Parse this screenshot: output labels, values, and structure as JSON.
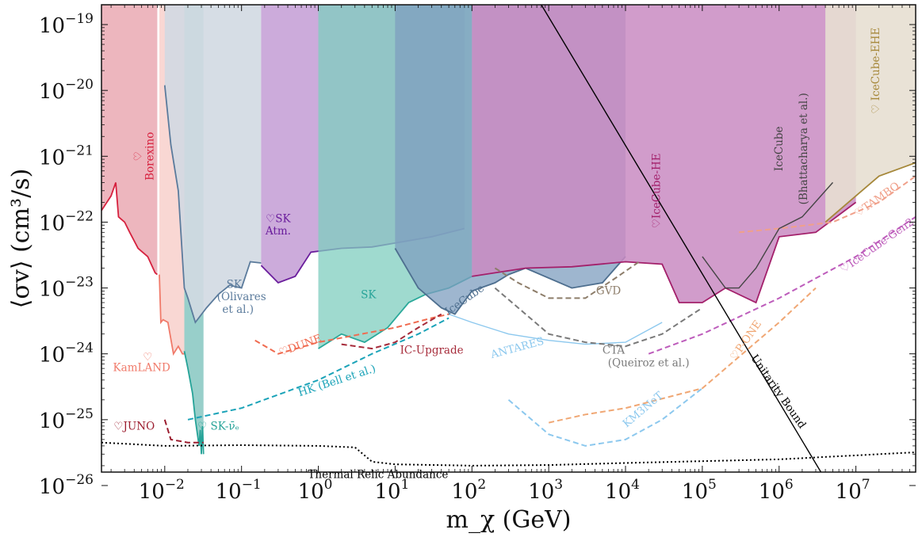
{
  "chart_data": {
    "type": "area",
    "xlabel": "m_χ (GeV)",
    "ylabel": "⟨σv⟩ (cm³/s)",
    "xscale": "log",
    "yscale": "log",
    "xlim": [
      0.0015,
      60000000
    ],
    "ylim": [
      1.6e-26,
      2e-19
    ],
    "xticks": [
      {
        "v": 0.01,
        "m": "10",
        "e": "−2"
      },
      {
        "v": 0.1,
        "m": "10",
        "e": "−1"
      },
      {
        "v": 1,
        "m": "10",
        "e": "0"
      },
      {
        "v": 10,
        "m": "10",
        "e": "1"
      },
      {
        "v": 100,
        "m": "10",
        "e": "2"
      },
      {
        "v": 1000,
        "m": "10",
        "e": "3"
      },
      {
        "v": 10000,
        "m": "10",
        "e": "4"
      },
      {
        "v": 100000,
        "m": "10",
        "e": "5"
      },
      {
        "v": 1000000,
        "m": "10",
        "e": "6"
      },
      {
        "v": 10000000,
        "m": "10",
        "e": "7"
      }
    ],
    "yticks": [
      {
        "v": 1e-26,
        "m": "10",
        "e": "−26"
      },
      {
        "v": 1e-25,
        "m": "10",
        "e": "−25"
      },
      {
        "v": 1e-24,
        "m": "10",
        "e": "−24"
      },
      {
        "v": 1e-23,
        "m": "10",
        "e": "−23"
      },
      {
        "v": 1e-22,
        "m": "10",
        "e": "−22"
      },
      {
        "v": 1e-21,
        "m": "10",
        "e": "−21"
      },
      {
        "v": 1e-20,
        "m": "10",
        "e": "−20"
      },
      {
        "v": 1e-19,
        "m": "10",
        "e": "−19"
      }
    ],
    "regions": [
      {
        "name": "Borexino",
        "color": "#e8a4ae",
        "edge": "#d6213e",
        "opacity": 0.8,
        "points": [
          [
            0.0015,
            1.5e-22
          ],
          [
            0.002,
            2.5e-22
          ],
          [
            0.0023,
            4e-22
          ],
          [
            0.0025,
            1.2e-22
          ],
          [
            0.003,
            1e-22
          ],
          [
            0.0035,
            7e-23
          ],
          [
            0.0045,
            4e-23
          ],
          [
            0.006,
            3e-23
          ],
          [
            0.0075,
            1.7e-23
          ],
          [
            0.008,
            1.6e-23
          ]
        ]
      },
      {
        "name": "KamLAND",
        "color": "#f7cdc8",
        "edge": "#f07a6a",
        "opacity": 0.8,
        "points": [
          [
            0.0085,
            1.6e-23
          ],
          [
            0.0089,
            3e-24
          ],
          [
            0.0095,
            3.3e-24
          ],
          [
            0.011,
            3e-24
          ],
          [
            0.013,
            1e-24
          ],
          [
            0.015,
            1.3e-24
          ],
          [
            0.017,
            1e-24
          ],
          [
            0.018,
            1e-24
          ]
        ]
      },
      {
        "name": "SK-nue",
        "color": "#86c7c1",
        "edge": "#26a398",
        "opacity": 0.85,
        "points": [
          [
            0.018,
            1.1e-24
          ],
          [
            0.02,
            6e-25
          ],
          [
            0.023,
            2.5e-25
          ],
          [
            0.025,
            1e-25
          ],
          [
            0.028,
            4e-26
          ],
          [
            0.029,
            7e-26
          ],
          [
            0.03,
            3e-26
          ],
          [
            0.031,
            8e-26
          ],
          [
            0.032,
            3e-26
          ]
        ]
      },
      {
        "name": "SK (Olivares et al.)",
        "color": "#d1d9e2",
        "edge": "#5b7b9c",
        "opacity": 0.9,
        "points": [
          [
            0.01,
            1.2e-20
          ],
          [
            0.012,
            1.5e-21
          ],
          [
            0.015,
            3e-22
          ],
          [
            0.018,
            1e-23
          ],
          [
            0.02,
            7e-24
          ],
          [
            0.025,
            3e-24
          ],
          [
            0.035,
            5e-24
          ],
          [
            0.05,
            8e-24
          ],
          [
            0.07,
            1.1e-23
          ],
          [
            0.1,
            1e-23
          ],
          [
            0.13,
            2.5e-23
          ],
          [
            0.18,
            2.4e-23
          ]
        ]
      },
      {
        "name": "SK Atm.",
        "color": "#c39cd5",
        "edge": "#6a1d9c",
        "opacity": 0.85,
        "points": [
          [
            0.18,
            2.2e-23
          ],
          [
            0.3,
            1.2e-23
          ],
          [
            0.5,
            1.5e-23
          ],
          [
            0.8,
            3.5e-23
          ],
          [
            2,
            4e-23
          ],
          [
            5,
            4.2e-23
          ],
          [
            12,
            5e-23
          ],
          [
            30,
            6e-23
          ],
          [
            80,
            8e-23
          ]
        ]
      },
      {
        "name": "SK",
        "color": "#7fcdbf",
        "edge": "#2ba99a",
        "opacity": 0.75,
        "points": [
          [
            1,
            1.2e-24
          ],
          [
            2,
            2e-24
          ],
          [
            4,
            1.5e-24
          ],
          [
            8,
            2.5e-24
          ],
          [
            15,
            6e-24
          ],
          [
            25,
            8e-24
          ],
          [
            50,
            1e-23
          ],
          [
            100,
            1.5e-23
          ]
        ]
      },
      {
        "name": "IceCube",
        "color": "#7e9dbf",
        "edge": "#4e6f8f",
        "opacity": 0.75,
        "points": [
          [
            10,
            4e-23
          ],
          [
            20,
            1e-23
          ],
          [
            40,
            5e-24
          ],
          [
            60,
            4e-24
          ],
          [
            100,
            9e-24
          ],
          [
            200,
            1.2e-23
          ],
          [
            300,
            1.6e-23
          ],
          [
            500,
            2e-23
          ],
          [
            2000,
            1e-23
          ],
          [
            5000,
            1.2e-23
          ],
          [
            10000,
            3e-23
          ]
        ]
      },
      {
        "name": "IceCube-HE",
        "color": "#c98bc2",
        "edge": "#a3206b",
        "opacity": 0.85,
        "points": [
          [
            100,
            1.5e-23
          ],
          [
            500,
            2e-23
          ],
          [
            2000,
            2.1e-23
          ],
          [
            10000,
            2.5e-23
          ],
          [
            30000,
            2.3e-23
          ],
          [
            50000,
            6e-24
          ],
          [
            100000,
            6e-24
          ],
          [
            200000,
            1e-23
          ],
          [
            500000,
            6e-24
          ],
          [
            1000000,
            6e-23
          ],
          [
            3000000,
            7e-23
          ],
          [
            10000000,
            2e-22
          ]
        ]
      },
      {
        "name": "IceCube-EHE",
        "color": "#e7dfd2",
        "edge": "#a6883a",
        "opacity": 0.9,
        "points": [
          [
            4000000,
            1e-22
          ],
          [
            10000000,
            2.5e-22
          ],
          [
            20000000,
            5e-22
          ],
          [
            60000000,
            8e-22
          ]
        ]
      }
    ],
    "curves": [
      {
        "name": "JUNO",
        "color": "#9b1c2e",
        "style": "dashed",
        "points": [
          [
            0.01,
            1e-25
          ],
          [
            0.012,
            5e-26
          ],
          [
            0.02,
            4.5e-26
          ],
          [
            0.032,
            4.5e-26
          ]
        ]
      },
      {
        "name": "DUNE",
        "color": "#f06b50",
        "style": "dashed",
        "points": [
          [
            0.15,
            1.6e-24
          ],
          [
            0.3,
            1e-24
          ],
          [
            1,
            1.5e-24
          ],
          [
            10,
            2.5e-24
          ],
          [
            30,
            3.5e-24
          ],
          [
            50,
            4e-24
          ]
        ]
      },
      {
        "name": "HK (Bell et al.)",
        "color": "#1ba3b8",
        "style": "dashed",
        "points": [
          [
            0.02,
            1e-25
          ],
          [
            0.1,
            1.5e-25
          ],
          [
            1,
            4e-25
          ],
          [
            5,
            1e-24
          ],
          [
            20,
            2e-24
          ],
          [
            50,
            3.5e-24
          ]
        ]
      },
      {
        "name": "IC-Upgrade",
        "color": "#a62b3a",
        "style": "dashed",
        "points": [
          [
            2,
            1.4e-24
          ],
          [
            5,
            1.2e-24
          ],
          [
            10,
            1.5e-24
          ],
          [
            20,
            2.5e-24
          ],
          [
            40,
            4e-24
          ]
        ]
      },
      {
        "name": "ANTARES",
        "color": "#8cc8ee",
        "style": "solid",
        "points": [
          [
            50,
            4e-24
          ],
          [
            100,
            3e-24
          ],
          [
            300,
            2e-24
          ],
          [
            1000,
            1.6e-24
          ],
          [
            3000,
            1.4e-24
          ],
          [
            10000,
            1.5e-24
          ],
          [
            30000,
            3e-24
          ]
        ]
      },
      {
        "name": "GVD",
        "color": "#8d7d6a",
        "style": "dashed",
        "points": [
          [
            200,
            2e-23
          ],
          [
            400,
            1.2e-23
          ],
          [
            1000,
            7e-24
          ],
          [
            3000,
            7e-24
          ],
          [
            8000,
            1.5e-23
          ],
          [
            15000,
            2.5e-23
          ]
        ]
      },
      {
        "name": "CTA (Queiroz et al.)",
        "color": "#7a7a7a",
        "style": "dashed",
        "points": [
          [
            200,
            1e-23
          ],
          [
            500,
            4e-24
          ],
          [
            1000,
            2e-24
          ],
          [
            3000,
            1.5e-24
          ],
          [
            10000,
            1.3e-24
          ],
          [
            30000,
            2e-24
          ],
          [
            100000,
            5e-24
          ]
        ]
      },
      {
        "name": "KM3NeT",
        "color": "#8cc8ee",
        "style": "dashed",
        "points": [
          [
            300,
            2e-25
          ],
          [
            1000,
            6e-26
          ],
          [
            3000,
            4e-26
          ],
          [
            10000,
            5e-26
          ],
          [
            30000,
            1e-25
          ],
          [
            100000,
            3e-25
          ]
        ]
      },
      {
        "name": "P-ONE",
        "color": "#f0a774",
        "style": "dashed",
        "points": [
          [
            1000,
            9e-26
          ],
          [
            3000,
            1.2e-25
          ],
          [
            10000,
            1.5e-25
          ],
          [
            100000,
            3e-25
          ],
          [
            1000000,
            3e-24
          ],
          [
            3000000,
            1e-23
          ]
        ]
      },
      {
        "name": "IceCube-Gen2",
        "color": "#bd5cbb",
        "style": "dashed",
        "points": [
          [
            20000,
            1e-24
          ],
          [
            100000,
            2e-24
          ],
          [
            1000000,
            7e-24
          ],
          [
            10000000,
            3e-23
          ],
          [
            60000000,
            1.2e-22
          ]
        ]
      },
      {
        "name": "TAMBO",
        "color": "#f0a08a",
        "style": "dashed",
        "points": [
          [
            300000,
            7e-23
          ],
          [
            1000000,
            8e-23
          ],
          [
            5000000,
            1e-22
          ],
          [
            20000000,
            2e-22
          ],
          [
            60000000,
            5e-22
          ]
        ]
      },
      {
        "name": "Thermal Relic Abundance",
        "color": "#000000",
        "style": "dotted",
        "points": [
          [
            0.0015,
            4.5e-26
          ],
          [
            0.01,
            4e-26
          ],
          [
            0.1,
            4.1e-26
          ],
          [
            1,
            4e-26
          ],
          [
            3,
            3.8e-26
          ],
          [
            5,
            2.3e-26
          ],
          [
            10,
            2.1e-26
          ],
          [
            100,
            2e-26
          ],
          [
            1000,
            2.05e-26
          ],
          [
            10000,
            2.2e-26
          ],
          [
            1000000,
            2.5e-26
          ],
          [
            60000000,
            3.2e-26
          ]
        ]
      },
      {
        "name": "Unitarity Bound",
        "color": "#000000",
        "style": "solid",
        "points": [
          [
            800,
            2e-19
          ],
          [
            3500000,
            1.6e-26
          ]
        ]
      },
      {
        "name": "IceCube (Bhattacharya et al.)",
        "color": "#444444",
        "style": "solid",
        "points": [
          [
            100000,
            3e-23
          ],
          [
            200000,
            1e-23
          ],
          [
            300000,
            1e-23
          ],
          [
            500000,
            2e-23
          ],
          [
            1000000,
            8e-23
          ],
          [
            2000000,
            1.2e-22
          ],
          [
            5000000,
            4e-22
          ]
        ]
      }
    ],
    "labels": [
      {
        "text": "♡\nBorexino",
        "color": "#d6213e",
        "rot": -90,
        "x": 0.005,
        "y": 1e-21
      },
      {
        "text": "♡",
        "color": "#f07a6a",
        "rot": 0,
        "x": 0.006,
        "y": 8e-25
      },
      {
        "text": "KamLAND",
        "color": "#f07a6a",
        "rot": 0,
        "x": 0.005,
        "y": 5.5e-25
      },
      {
        "text": "♡JUNO",
        "color": "#9b1c2e",
        "rot": 0,
        "x": 0.004,
        "y": 7e-26
      },
      {
        "text": "♡ SK-ν̄ₑ",
        "color": "#26a398",
        "rot": 0,
        "x": 0.05,
        "y": 7e-26
      },
      {
        "text": "SK",
        "color": "#5b7b9c",
        "rot": 0,
        "x": 0.08,
        "y": 1e-23
      },
      {
        "text": "(Olivares",
        "color": "#5b7b9c",
        "rot": 0,
        "x": 0.1,
        "y": 6.5e-24
      },
      {
        "text": "et al.)",
        "color": "#5b7b9c",
        "rot": 0,
        "x": 0.09,
        "y": 4.2e-24
      },
      {
        "text": "♡SK",
        "color": "#6a1d9c",
        "rot": 0,
        "x": 0.3,
        "y": 1e-22
      },
      {
        "text": "Atm.",
        "color": "#6a1d9c",
        "rot": 0,
        "x": 0.3,
        "y": 6.5e-23
      },
      {
        "text": "SK",
        "color": "#26a398",
        "rot": 0,
        "x": 4.5,
        "y": 7e-24
      },
      {
        "text": "♡DUNE",
        "color": "#f06b50",
        "rot": -20,
        "x": 0.6,
        "y": 1.2e-24
      },
      {
        "text": "HK (Bell et al.)",
        "color": "#1ba3b8",
        "rot": -18,
        "x": 1.8,
        "y": 3.5e-25
      },
      {
        "text": "IC-Upgrade",
        "color": "#a62b3a",
        "rot": 0,
        "x": 30,
        "y": 1e-24
      },
      {
        "text": "IceCube",
        "color": "#4e6f8f",
        "rot": -35,
        "x": 85,
        "y": 6e-24
      },
      {
        "text": "ANTARES",
        "color": "#8cc8ee",
        "rot": -15,
        "x": 400,
        "y": 1.1e-24
      },
      {
        "text": "GVD",
        "color": "#8d7d6a",
        "rot": 0,
        "x": 6000,
        "y": 8e-24
      },
      {
        "text": "CTA",
        "color": "#7a7a7a",
        "rot": 0,
        "x": 7000,
        "y": 1e-24
      },
      {
        "text": "(Queiroz et al.)",
        "color": "#7a7a7a",
        "rot": 0,
        "x": 20000,
        "y": 6.5e-25
      },
      {
        "text": "KM3NeT",
        "color": "#8cc8ee",
        "rot": -40,
        "x": 18000,
        "y": 1.3e-25
      },
      {
        "text": "♡IceCube-HE",
        "color": "#a3206b",
        "rot": -90,
        "x": 28000,
        "y": 3e-22
      },
      {
        "text": "IceCube",
        "color": "#444444",
        "rot": -90,
        "x": 1100000,
        "y": 1.3e-21
      },
      {
        "text": "(Bhattacharya et al.)",
        "color": "#444444",
        "rot": -90,
        "x": 2300000,
        "y": 1.3e-21
      },
      {
        "text": "♡ IceCube-EHE",
        "color": "#a6883a",
        "rot": -90,
        "x": 20000000,
        "y": 2e-20
      },
      {
        "text": "♡TAMBO",
        "color": "#f0a08a",
        "rot": -35,
        "x": 20000000,
        "y": 2e-22
      },
      {
        "text": "♡IceCube-Gen2",
        "color": "#bd5cbb",
        "rot": -35,
        "x": 20000000,
        "y": 4e-23
      },
      {
        "text": "♡P-ONE",
        "color": "#f0a774",
        "rot": -55,
        "x": 400000,
        "y": 1.5e-24
      },
      {
        "text": "Unitarity Bound",
        "color": "#000000",
        "rot": 55,
        "x": 900000,
        "y": 2.5e-25
      },
      {
        "text": "Thermal Relic Abundance",
        "color": "#000000",
        "rot": 0,
        "x": 6,
        "y": 1.3e-26
      }
    ]
  }
}
